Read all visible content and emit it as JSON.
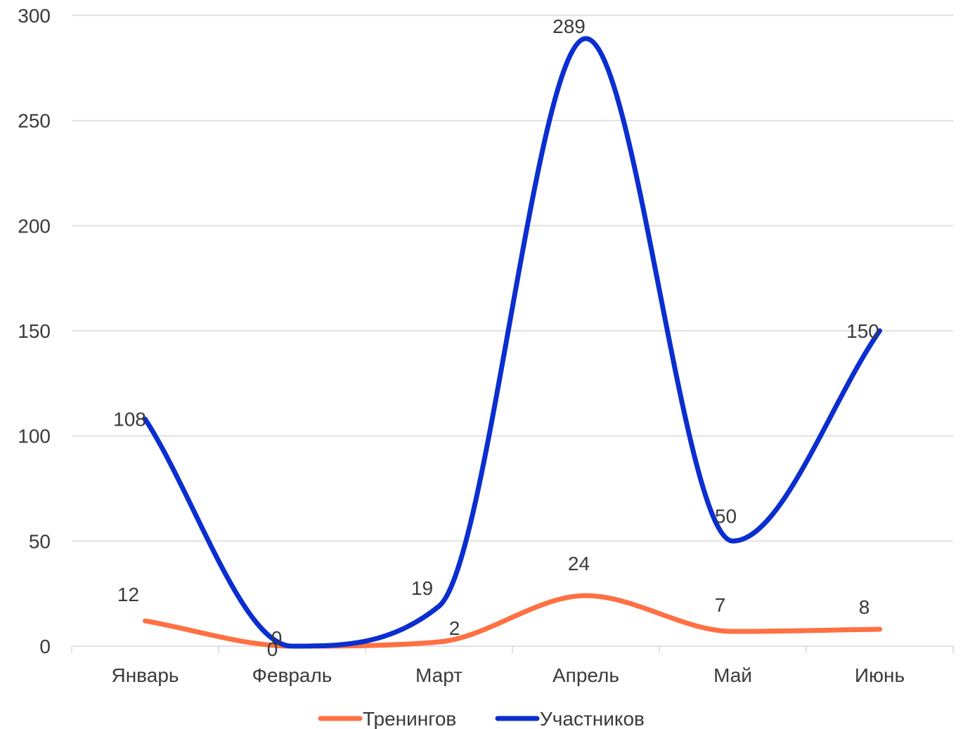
{
  "chart_data": {
    "type": "line",
    "title": "",
    "xlabel": "",
    "ylabel": "",
    "categories": [
      "Январь",
      "Февраль",
      "Март",
      "Апрель",
      "Май",
      "Июнь"
    ],
    "ylim": [
      0,
      300
    ],
    "yticks": [
      0,
      50,
      100,
      150,
      200,
      250,
      300
    ],
    "grid": true,
    "smooth": true,
    "legend_position": "bottom",
    "series": [
      {
        "name": "Тренингов",
        "color": "#ff7043",
        "values": [
          12,
          0,
          2,
          24,
          7,
          8
        ]
      },
      {
        "name": "Участников",
        "color": "#0a2ecf",
        "values": [
          108,
          0,
          19,
          289,
          50,
          150
        ]
      }
    ]
  }
}
